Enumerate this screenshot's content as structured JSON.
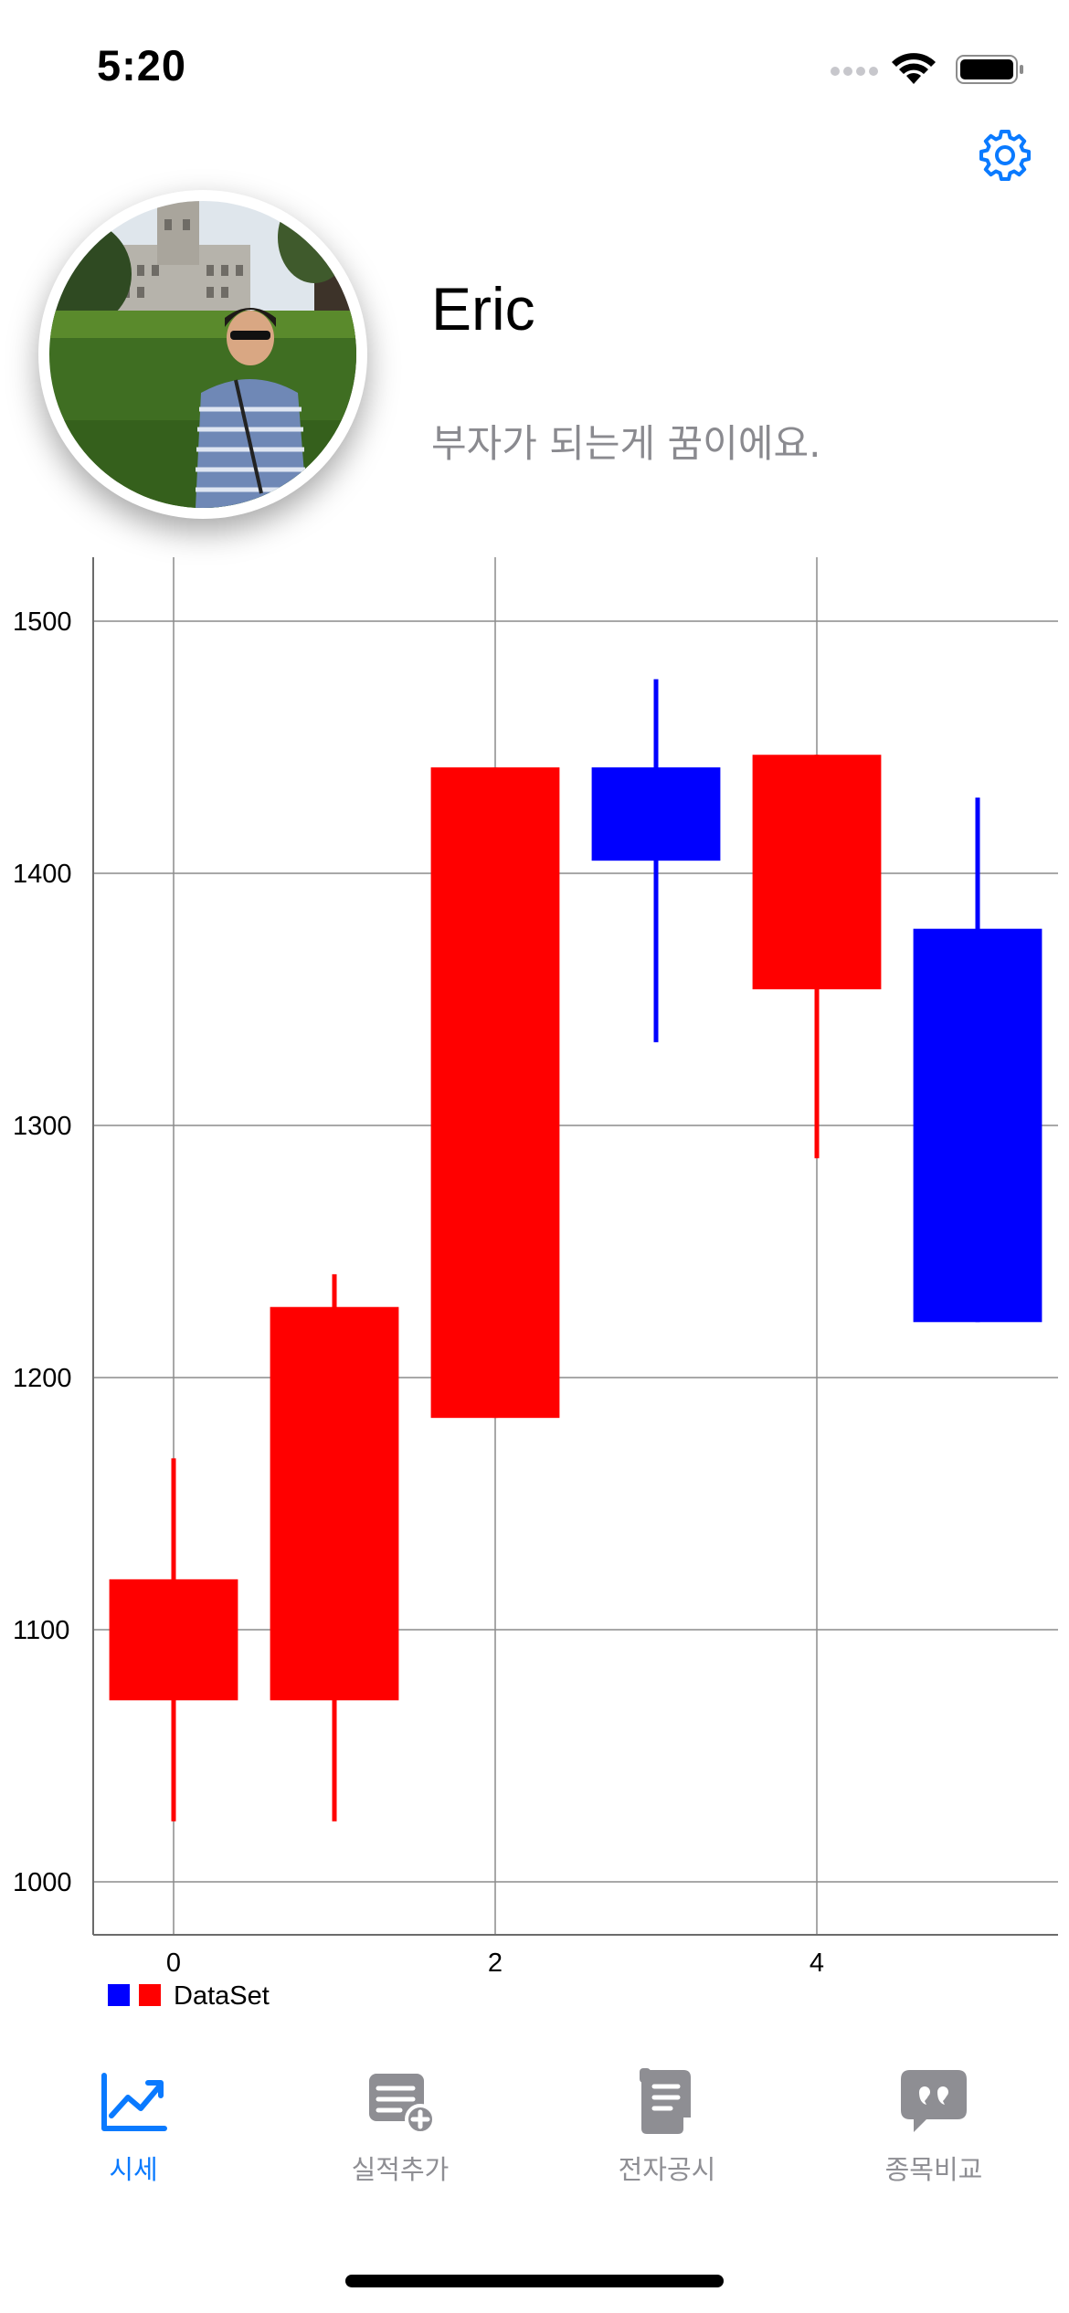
{
  "status_bar": {
    "time": "5:20"
  },
  "profile": {
    "name": "Eric",
    "bio": "부자가 되는게 꿈이에요."
  },
  "icons": {
    "settings": "gear-icon",
    "avatar": "profile-photo"
  },
  "chart_data": {
    "type": "candlestick",
    "title": "",
    "xlabel": "",
    "ylabel": "",
    "x_ticks": [
      "0",
      "2",
      "4"
    ],
    "y_ticks": [
      "1000",
      "1100",
      "1200",
      "1300",
      "1400",
      "1500"
    ],
    "xlim": [
      -0.5,
      5.5
    ],
    "ylim": [
      979,
      1521
    ],
    "grid": true,
    "legend": {
      "position": "bottom-left",
      "label": "DataSet",
      "colors": [
        "#0000ff",
        "#ff0000"
      ]
    },
    "series": [
      {
        "name": "DataSet",
        "candles": [
          {
            "x": 0,
            "open": 1120,
            "close": 1072,
            "high": 1168,
            "low": 1024,
            "color": "#ff0000"
          },
          {
            "x": 1,
            "open": 1228,
            "close": 1072,
            "high": 1241,
            "low": 1024,
            "color": "#ff0000"
          },
          {
            "x": 2,
            "open": 1442,
            "close": 1184,
            "high": 1442,
            "low": 1184,
            "color": "#ff0000"
          },
          {
            "x": 3,
            "open": 1405,
            "close": 1442,
            "high": 1477,
            "low": 1333,
            "color": "#0000ff"
          },
          {
            "x": 4,
            "open": 1447,
            "close": 1354,
            "high": 1447,
            "low": 1287,
            "color": "#ff0000"
          },
          {
            "x": 5,
            "open": 1222,
            "close": 1378,
            "high": 1430,
            "low": 1222,
            "color": "#0000ff"
          }
        ]
      }
    ]
  },
  "tabbar": {
    "active_color": "#0a7aff",
    "inactive_color": "#8e8e93",
    "tabs": [
      {
        "label": "시세",
        "icon": "chart-line-icon",
        "active": true
      },
      {
        "label": "실적추가",
        "icon": "document-add-icon",
        "active": false
      },
      {
        "label": "전자공시",
        "icon": "scroll-icon",
        "active": false
      },
      {
        "label": "종목비교",
        "icon": "quote-bubble-icon",
        "active": false
      }
    ]
  }
}
